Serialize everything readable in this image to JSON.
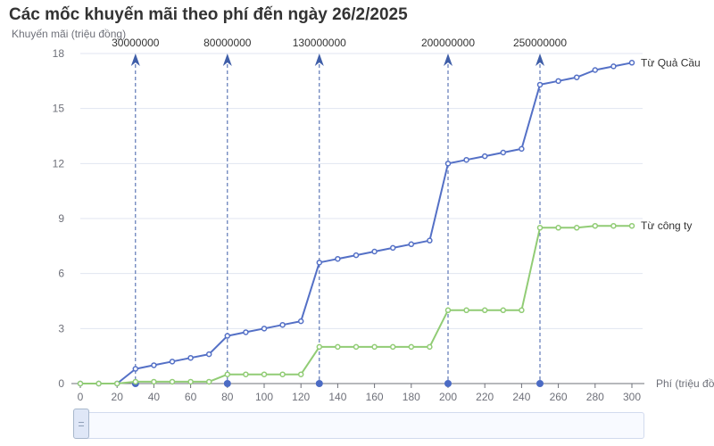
{
  "chart_data": {
    "type": "line",
    "title": "Các mốc khuyến mãi theo phí đến ngày 26/2/2025",
    "xlabel": "Phí (triệu đồng)",
    "ylabel": "Khuyến mãi (triệu đồng)",
    "xlim": [
      0,
      300
    ],
    "ylim": [
      0,
      18
    ],
    "x_ticks": [
      0,
      20,
      40,
      60,
      80,
      100,
      120,
      140,
      160,
      180,
      200,
      220,
      240,
      260,
      280,
      300
    ],
    "y_ticks": [
      0,
      3,
      6,
      9,
      12,
      15,
      18
    ],
    "grid": true,
    "series": [
      {
        "name": "Từ Quả Cầu",
        "color": "#5470c6",
        "points": [
          [
            0,
            0
          ],
          [
            10,
            0
          ],
          [
            20,
            0
          ],
          [
            30,
            0.8
          ],
          [
            40,
            1.0
          ],
          [
            50,
            1.2
          ],
          [
            60,
            1.4
          ],
          [
            70,
            1.6
          ],
          [
            80,
            2.6
          ],
          [
            90,
            2.8
          ],
          [
            100,
            3.0
          ],
          [
            110,
            3.2
          ],
          [
            120,
            3.4
          ],
          [
            130,
            6.6
          ],
          [
            140,
            6.8
          ],
          [
            150,
            7.0
          ],
          [
            160,
            7.2
          ],
          [
            170,
            7.4
          ],
          [
            180,
            7.6
          ],
          [
            190,
            7.8
          ],
          [
            200,
            12.0
          ],
          [
            210,
            12.2
          ],
          [
            220,
            12.4
          ],
          [
            230,
            12.6
          ],
          [
            240,
            12.8
          ],
          [
            250,
            16.3
          ],
          [
            260,
            16.5
          ],
          [
            270,
            16.7
          ],
          [
            280,
            17.1
          ],
          [
            290,
            17.3
          ],
          [
            300,
            17.5
          ]
        ]
      },
      {
        "name": "Từ công ty",
        "color": "#91cc75",
        "points": [
          [
            0,
            0
          ],
          [
            10,
            0
          ],
          [
            20,
            0
          ],
          [
            30,
            0.1
          ],
          [
            40,
            0.1
          ],
          [
            50,
            0.1
          ],
          [
            60,
            0.1
          ],
          [
            70,
            0.1
          ],
          [
            80,
            0.5
          ],
          [
            90,
            0.5
          ],
          [
            100,
            0.5
          ],
          [
            110,
            0.5
          ],
          [
            120,
            0.5
          ],
          [
            130,
            2.0
          ],
          [
            140,
            2.0
          ],
          [
            150,
            2.0
          ],
          [
            160,
            2.0
          ],
          [
            170,
            2.0
          ],
          [
            180,
            2.0
          ],
          [
            190,
            2.0
          ],
          [
            200,
            4.0
          ],
          [
            210,
            4.0
          ],
          [
            220,
            4.0
          ],
          [
            230,
            4.0
          ],
          [
            240,
            4.0
          ],
          [
            250,
            8.5
          ],
          [
            260,
            8.5
          ],
          [
            270,
            8.5
          ],
          [
            280,
            8.6
          ],
          [
            290,
            8.6
          ],
          [
            300,
            8.6
          ]
        ]
      }
    ],
    "reference_lines": [
      {
        "x": 30,
        "label": "30000000"
      },
      {
        "x": 80,
        "label": "80000000"
      },
      {
        "x": 130,
        "label": "130000000"
      },
      {
        "x": 200,
        "label": "200000000"
      },
      {
        "x": 250,
        "label": "250000000"
      }
    ],
    "data_zoom_range": [
      0,
      100
    ]
  }
}
